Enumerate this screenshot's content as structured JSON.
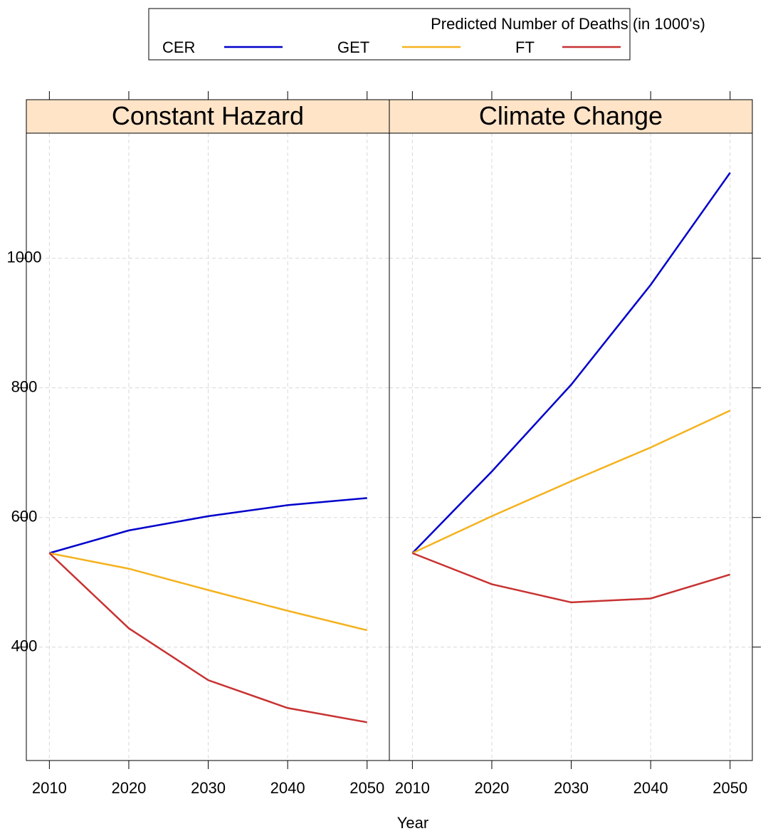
{
  "chart_data": {
    "type": "line",
    "title": "Predicted Number of Deaths (in 1000's)",
    "x_label": "Year",
    "panels": [
      "Constant Hazard",
      "Climate Change"
    ],
    "x": [
      2010,
      2020,
      2030,
      2040,
      2050
    ],
    "xlim": [
      2007.1,
      2052.8
    ],
    "xticks": [
      2010,
      2020,
      2030,
      2040,
      2050
    ],
    "ylim": [
      225,
      1193
    ],
    "yticks": [
      400,
      600,
      800,
      1000
    ],
    "grid": true,
    "series": [
      {
        "name": "CER",
        "color": "#0000cc",
        "values": [
          [
            545,
            580,
            602,
            619,
            630
          ],
          [
            545,
            671,
            805,
            959,
            1132
          ]
        ]
      },
      {
        "name": "GET",
        "color": "#f5b21e",
        "values": [
          [
            545,
            521,
            488,
            456,
            426
          ],
          [
            545,
            602,
            656,
            708,
            765
          ]
        ]
      },
      {
        "name": "FT",
        "color": "#c83232",
        "values": [
          [
            545,
            429,
            349,
            306,
            284
          ],
          [
            545,
            497,
            469,
            475,
            512
          ]
        ]
      }
    ]
  }
}
